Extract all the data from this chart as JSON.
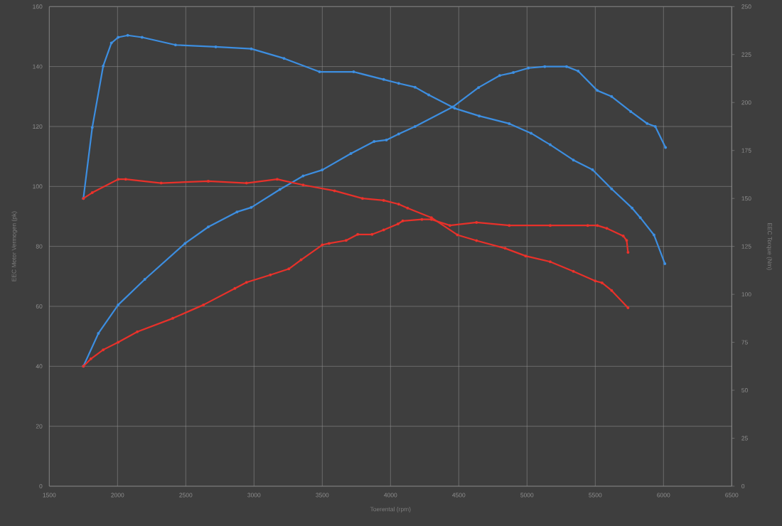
{
  "chart_data": {
    "type": "line",
    "xlabel": "Toerental (rpm)",
    "ylabel": "EEC Motor Vermogen (pk)",
    "y2label": "EEC Torque (Nm)",
    "xlim": [
      1500,
      6500
    ],
    "xticks": [
      1500,
      2000,
      2500,
      3000,
      3500,
      4000,
      4500,
      5000,
      5500,
      6000,
      6500
    ],
    "ylim": [
      0,
      160
    ],
    "yticks": [
      0,
      20,
      40,
      60,
      80,
      100,
      120,
      140,
      160
    ],
    "y2lim": [
      0,
      250
    ],
    "y2ticks": [
      0,
      25,
      50,
      75,
      100,
      125,
      150,
      175,
      200,
      225,
      250
    ],
    "grid": true,
    "marker": "circle",
    "line_style": "solid",
    "series": [
      {
        "color": "#3d8ee0",
        "axis": "y2",
        "x": [
          1750,
          1815,
          1895,
          1955,
          2005,
          2075,
          2180,
          2425,
          2720,
          2980,
          3220,
          3480,
          3730,
          3950,
          4060,
          4180,
          4280,
          4470,
          4650,
          4870,
          5030,
          5170,
          5340,
          5480,
          5620,
          5770,
          5830,
          5930,
          6010
        ],
        "values": [
          150,
          187,
          219,
          231,
          234,
          235,
          234,
          230,
          229,
          228,
          223,
          216,
          216,
          212,
          210,
          208,
          204,
          197,
          193,
          189,
          184,
          178,
          170,
          165,
          155,
          145,
          140,
          131,
          116
        ]
      },
      {
        "color": "#3d8ee0",
        "x": [
          1750,
          1860,
          2005,
          2200,
          2495,
          2665,
          2875,
          2980,
          3190,
          3360,
          3500,
          3710,
          3880,
          3970,
          4060,
          4180,
          4455,
          4645,
          4800,
          4900,
          5010,
          5130,
          5290,
          5375,
          5515,
          5620,
          5760,
          5880,
          5940,
          6015
        ],
        "values": [
          40,
          51,
          60.5,
          69,
          81,
          86.5,
          91.5,
          93,
          99,
          103.5,
          105.5,
          111,
          115,
          115.5,
          117.5,
          120,
          126.5,
          133,
          137,
          138,
          139.5,
          140,
          140,
          138.5,
          132,
          130,
          125,
          121,
          120,
          113
        ]
      },
      {
        "color": "#e8312a",
        "axis": "y2",
        "x": [
          1750,
          1815,
          2005,
          2060,
          2320,
          2665,
          2945,
          3170,
          3360,
          3590,
          3795,
          3950,
          4060,
          4125,
          4300,
          4490,
          4630,
          4840,
          4990,
          5170,
          5340,
          5500,
          5550,
          5620,
          5740
        ],
        "values": [
          150,
          153,
          160,
          160,
          158,
          159,
          158,
          160,
          157,
          154,
          150,
          149,
          147,
          145,
          140,
          131,
          128,
          124,
          120,
          117,
          112,
          107,
          106,
          102,
          93
        ]
      },
      {
        "color": "#e8312a",
        "x": [
          1750,
          1805,
          1895,
          2005,
          2145,
          2405,
          2630,
          2860,
          2945,
          3120,
          3255,
          3345,
          3500,
          3550,
          3675,
          3760,
          3865,
          3950,
          4055,
          4090,
          4230,
          4300,
          4435,
          4630,
          4870,
          5170,
          5445,
          5515,
          5585,
          5705,
          5730,
          5740
        ],
        "values": [
          40,
          42.5,
          45.5,
          48,
          51.5,
          56,
          60.5,
          66,
          68,
          70.5,
          72.5,
          75.5,
          80.5,
          81,
          82,
          84,
          84,
          85.5,
          87.5,
          88.5,
          89,
          89,
          87,
          88,
          87,
          87,
          87,
          87,
          86,
          83.5,
          82,
          78
        ]
      }
    ]
  }
}
